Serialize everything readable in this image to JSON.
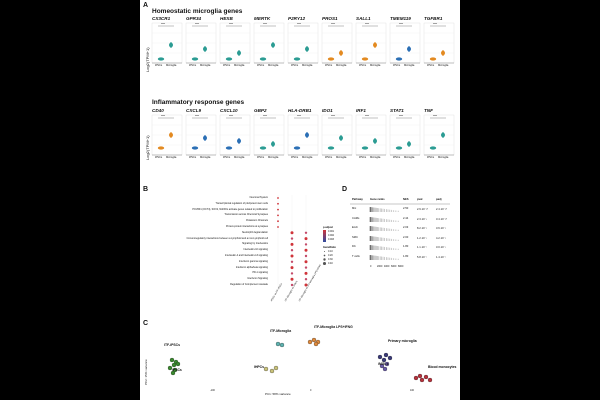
{
  "panel_labels": {
    "a": "A",
    "b": "B",
    "c": "C",
    "d": "D"
  },
  "panel_a": {
    "homeostatic_title": "Homeostatic microglia genes",
    "inflammatory_title": "Inflammatory response genes",
    "ylabel": "Log2(TPM+1)",
    "xticks": [
      "iPSCs",
      "Microglia"
    ],
    "sig_label": "****",
    "homeostatic_genes": [
      "CX3CR1",
      "GPR34",
      "HEXB",
      "MERTK",
      "P2RY12",
      "PROS1",
      "SALL1",
      "TMEM119",
      "TGFBR1"
    ],
    "inflammatory_genes": [
      "CD40",
      "CXCL9",
      "CXCL10",
      "GBP2",
      "HLA-DRB1",
      "IDO1",
      "IRF1",
      "STAT1",
      "TNF"
    ],
    "colors": {
      "teal": "#2b9c93",
      "orange": "#e38a21",
      "blue": "#2b6fb5"
    }
  },
  "panel_b": {
    "pathways": [
      "Neuronal System",
      "Transcriptional regulation of pluripotent stem cells",
      "POU5F1 (OCT4), SOX2, NANOG activate genes related to proliferation",
      "Transmission across Chemical Synapses",
      "Potassium Channels",
      "Protein-protein interactions at synapses",
      "Neutrophil degranulation",
      "Immunoregulatory interactions between a Lymphoid and a non-Lymphoid cell",
      "Signaling by Interleukins",
      "Interleukin-10 signaling",
      "Interleukin-4 and Interleukin-13 signaling",
      "Interferon gamma signaling",
      "Interferon alpha/beta signaling",
      "PD-1 signaling",
      "Interferon Signaling",
      "Regulation of Complement cascade"
    ],
    "columns": [
      "iPSCs vs ITF-iPSCs",
      "ITF-Microglia vs iPSCs",
      "ITF-Microglia vs ITF-Microglia LPS+IFNG"
    ],
    "legend_padj_title": "p.adjust",
    "legend_padj_values": [
      "0.001",
      "0.002",
      "0.003"
    ],
    "legend_gr_title": "GeneRatio",
    "legend_gr_values": [
      "0.10",
      "0.20",
      "0.30",
      "0.40"
    ],
    "colors": {
      "high": "#d0343a",
      "low": "#2d4ba0"
    }
  },
  "panel_c": {
    "xlabel": "PC1: 58% variance",
    "ylabel": "PC2: 15% variance",
    "groups": [
      {
        "label": "ITF-iPSCs",
        "color": "#3a8a2e"
      },
      {
        "label": "iPSCs",
        "color": "#3a8a2e"
      },
      {
        "label": "IHPCs",
        "color": "#c9c27a"
      },
      {
        "label": "ITF-Microglia",
        "color": "#5fb3b0"
      },
      {
        "label": "ITF-Microglia LPS+IFNG",
        "color": "#e08a3c"
      },
      {
        "label": "Primary microglia",
        "color": "#3a3a7a"
      },
      {
        "label": "iMGLs",
        "color": "#6a5aa8"
      },
      {
        "label": "Blood monocytes",
        "color": "#b8323c"
      }
    ],
    "xticks": [
      "-100",
      "0",
      "100"
    ],
    "yticks": [
      "50",
      "0",
      "-50"
    ]
  },
  "panel_d": {
    "headers": [
      "Pathway",
      "Gene ranks",
      "NES",
      "pval",
      "padj"
    ],
    "rows": [
      {
        "pathway": "Mic",
        "nes": "2.50",
        "pval": "2.9·10⁻¹⁰",
        "padj": "2.4·10⁻¹⁰"
      },
      {
        "pathway": "CAMs",
        "nes": "2.44",
        "pval": "2.3·10⁻⁹",
        "padj": "3.4·10⁻¹⁰"
      },
      {
        "pathway": "Endt",
        "nes": "2.03",
        "pval": "8.2·10⁻⁶",
        "padj": "3.6·10⁻⁶"
      },
      {
        "pathway": "SMC",
        "nes": "2.00",
        "pval": "1.2·10⁻⁵",
        "padj": "4.2·10⁻⁶"
      },
      {
        "pathway": "Fib",
        "nes": "1.80",
        "pval": "1.1·10⁻⁴",
        "padj": "3.0·10⁻⁵"
      },
      {
        "pathway": "T cells",
        "nes": "1.80",
        "pval": "5.8·10⁻⁴",
        "padj": "1.4·10⁻⁴"
      }
    ],
    "axis_ticks": [
      "0",
      "2000",
      "4000",
      "6000",
      "8000"
    ]
  }
}
